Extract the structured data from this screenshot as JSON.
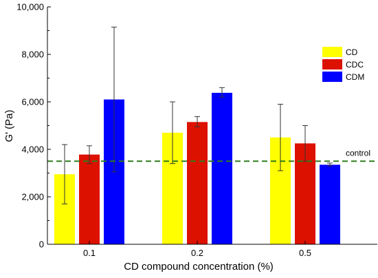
{
  "chart_data": {
    "type": "bar",
    "title": "",
    "xlabel": "CD compound concentration (%)",
    "ylabel": "G' (Pa)",
    "ylim": [
      0,
      10000
    ],
    "yticks": [
      0,
      2000,
      4000,
      6000,
      8000,
      10000
    ],
    "ytick_labels": [
      "0",
      "2,000",
      "4,000",
      "6,000",
      "8,000",
      "10,000"
    ],
    "categories": [
      "0.1",
      "0.2",
      "0.5"
    ],
    "series": [
      {
        "name": "CD",
        "color": "#ffff00",
        "values": [
          2950,
          4700,
          4500
        ],
        "error_low": [
          1700,
          3400,
          3100
        ],
        "error_high": [
          4200,
          6000,
          5900
        ]
      },
      {
        "name": "CDC",
        "color": "#dd1100",
        "values": [
          3780,
          5150,
          4250
        ],
        "error_low": [
          3400,
          4950,
          3500
        ],
        "error_high": [
          4150,
          5380,
          5000
        ]
      },
      {
        "name": "CDM",
        "color": "#0000ff",
        "values": [
          6100,
          6380,
          3350
        ],
        "error_low": [
          3050,
          6200,
          3300
        ],
        "error_high": [
          9150,
          6600,
          3420
        ]
      }
    ],
    "reference_line": {
      "label": "control",
      "value": 3500,
      "color": "#2e7d1a"
    },
    "legend_position": "top-right"
  }
}
